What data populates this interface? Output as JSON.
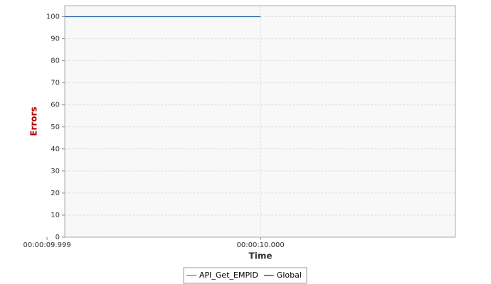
{
  "chart_data": {
    "type": "line",
    "x": [
      9.999,
      10.0
    ],
    "series": [
      {
        "name": "API_Get_EMPID",
        "color": "#2060a8",
        "values": [
          100,
          100
        ]
      },
      {
        "name": "Global",
        "color": "#000000",
        "values": [
          null,
          null
        ]
      }
    ],
    "xlabel": "Time",
    "ylabel": "Errors",
    "xlim": [
      9.999083,
      10.000913
    ],
    "xticks": [
      {
        "value": 9.999,
        "label": "00:00:09.999"
      },
      {
        "value": 10.0,
        "label": "00:00:10.000"
      }
    ],
    "ylim": [
      0,
      105
    ],
    "yticks": [
      0,
      10,
      20,
      30,
      40,
      50,
      60,
      70,
      80,
      90,
      100
    ],
    "grid": true,
    "legend": "bottom"
  }
}
